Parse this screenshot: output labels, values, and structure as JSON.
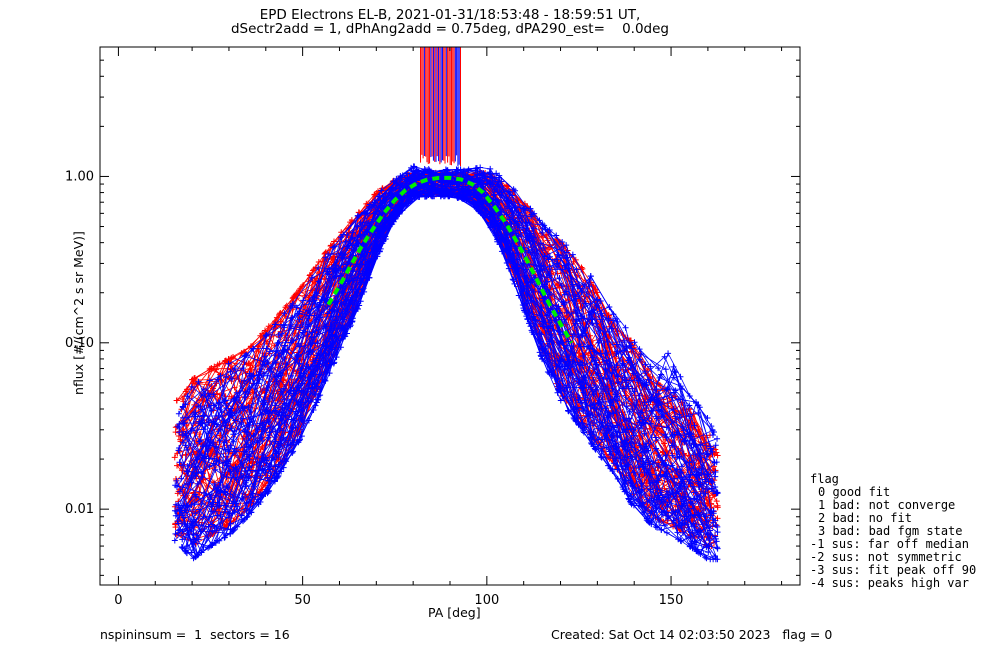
{
  "chart_data": {
    "type": "line",
    "title": "EPD Electrons EL-B, 2021-01-31/18:53:48 - 18:59:51 UT,",
    "subtitle": "dSectr2add = 1, dPhAng2add = 0.75deg, dPA290_est=    0.0deg",
    "xlabel": "PA [deg]",
    "ylabel": "nflux [#/(cm^2 s sr MeV)]",
    "xlim": [
      -5,
      185
    ],
    "ylim": [
      0.0035,
      6.0
    ],
    "yscale": "log",
    "x_ticks": [
      "0",
      "50",
      "100",
      "150"
    ],
    "x_tick_values": [
      0,
      50,
      100,
      150
    ],
    "y_ticks": [
      "0.01",
      "0.10",
      "1.00"
    ],
    "y_tick_values": [
      0.01,
      0.1,
      1.0
    ],
    "grid": false,
    "fit_curve": {
      "style": "green dashed",
      "x": [
        57,
        60,
        63,
        66,
        69,
        72,
        75,
        78,
        81,
        84,
        87,
        90,
        93,
        96,
        99,
        102,
        105,
        108,
        111,
        114,
        117,
        120,
        123
      ],
      "y": [
        0.17,
        0.22,
        0.29,
        0.38,
        0.48,
        0.6,
        0.72,
        0.83,
        0.91,
        0.96,
        0.98,
        0.98,
        0.96,
        0.9,
        0.8,
        0.66,
        0.53,
        0.41,
        0.31,
        0.23,
        0.17,
        0.13,
        0.1
      ]
    },
    "series": [
      {
        "color": "red",
        "marker": "+",
        "envelope_pa": [
          17,
          20,
          25,
          30,
          35,
          40,
          45,
          50,
          55,
          60,
          65,
          70,
          75,
          80,
          85,
          90,
          95,
          100,
          105,
          110,
          115,
          120,
          125,
          130,
          135,
          140,
          145,
          150,
          155,
          160,
          163
        ],
        "envelope_low": [
          0.007,
          0.006,
          0.007,
          0.008,
          0.01,
          0.014,
          0.02,
          0.032,
          0.06,
          0.1,
          0.18,
          0.35,
          0.6,
          0.78,
          0.78,
          0.78,
          0.75,
          0.6,
          0.35,
          0.18,
          0.09,
          0.05,
          0.035,
          0.025,
          0.018,
          0.012,
          0.009,
          0.008,
          0.007,
          0.006,
          0.006
        ],
        "envelope_high": [
          0.045,
          0.06,
          0.07,
          0.08,
          0.09,
          0.12,
          0.16,
          0.22,
          0.32,
          0.45,
          0.6,
          0.8,
          0.95,
          1.05,
          1.05,
          1.05,
          1.05,
          1.05,
          0.9,
          0.7,
          0.5,
          0.4,
          0.3,
          0.2,
          0.12,
          0.1,
          0.06,
          0.05,
          0.04,
          0.03,
          0.02
        ]
      },
      {
        "color": "blue",
        "marker": "+",
        "envelope_pa": [
          17,
          20,
          25,
          30,
          35,
          40,
          45,
          50,
          55,
          60,
          65,
          70,
          75,
          80,
          85,
          90,
          95,
          100,
          105,
          110,
          115,
          120,
          125,
          130,
          135,
          140,
          145,
          150,
          155,
          160,
          163
        ],
        "envelope_low": [
          0.006,
          0.005,
          0.006,
          0.007,
          0.009,
          0.012,
          0.018,
          0.028,
          0.05,
          0.09,
          0.16,
          0.32,
          0.55,
          0.75,
          0.76,
          0.76,
          0.72,
          0.55,
          0.32,
          0.16,
          0.08,
          0.045,
          0.032,
          0.022,
          0.016,
          0.01,
          0.008,
          0.007,
          0.006,
          0.005,
          0.005
        ],
        "envelope_high": [
          0.04,
          0.055,
          0.065,
          0.075,
          0.085,
          0.11,
          0.15,
          0.2,
          0.3,
          0.42,
          0.58,
          0.78,
          0.95,
          1.15,
          1.1,
          1.1,
          1.1,
          1.15,
          0.95,
          0.72,
          0.52,
          0.42,
          0.32,
          0.22,
          0.14,
          0.11,
          0.07,
          0.09,
          0.05,
          0.035,
          0.025
        ]
      }
    ],
    "top_spikes": {
      "pa_range": [
        82,
        93
      ],
      "colors": [
        "blue",
        "red"
      ]
    },
    "legend": {
      "position": "right",
      "header": "flag",
      "entries": [
        "0 good fit",
        "1 bad: not converge",
        "2 bad: no fit",
        "3 bad: bad fgm state",
        "-1 sus: far off median",
        "-2 sus: not symmetric",
        "-3 sus: fit peak off 90",
        "-4 sus: peaks high var"
      ]
    },
    "footer": {
      "left": "nspininsum =  1  sectors = 16",
      "right": "Created: Sat Oct 14 02:03:50 2023   flag = 0"
    }
  },
  "colors": {
    "red": "#ff0000",
    "blue": "#0000ff",
    "green": "#00ee00",
    "axis": "#000000"
  }
}
